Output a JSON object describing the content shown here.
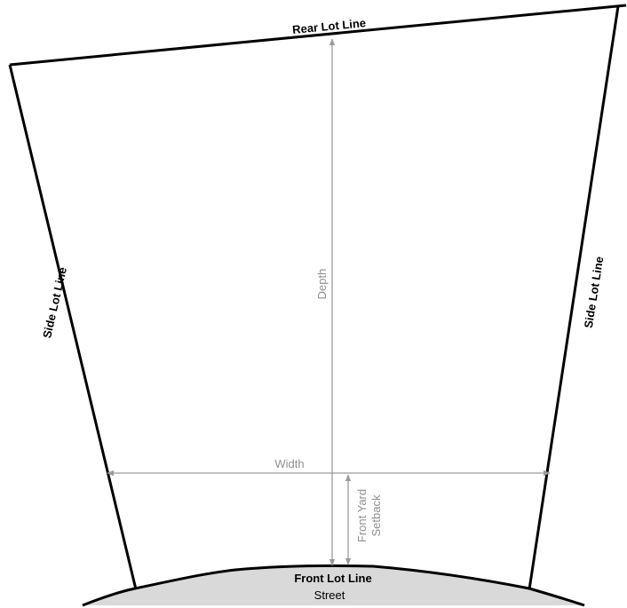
{
  "labels": {
    "rear_lot_line": "Rear Lot Line",
    "side_lot_line_left": "Side Lot Line",
    "side_lot_line_right": "Side Lot Line",
    "front_lot_line": "Front Lot Line",
    "street": "Street",
    "depth": "Depth",
    "width": "Width",
    "front_yard_setback_line1": "Front Yard",
    "front_yard_setback_line2": "Setback"
  },
  "colors": {
    "lot_line": "#000000",
    "dimension": "#9a9a9a",
    "dimension_text": "#8f8f8f",
    "street_fill": "#d9d9d9"
  }
}
